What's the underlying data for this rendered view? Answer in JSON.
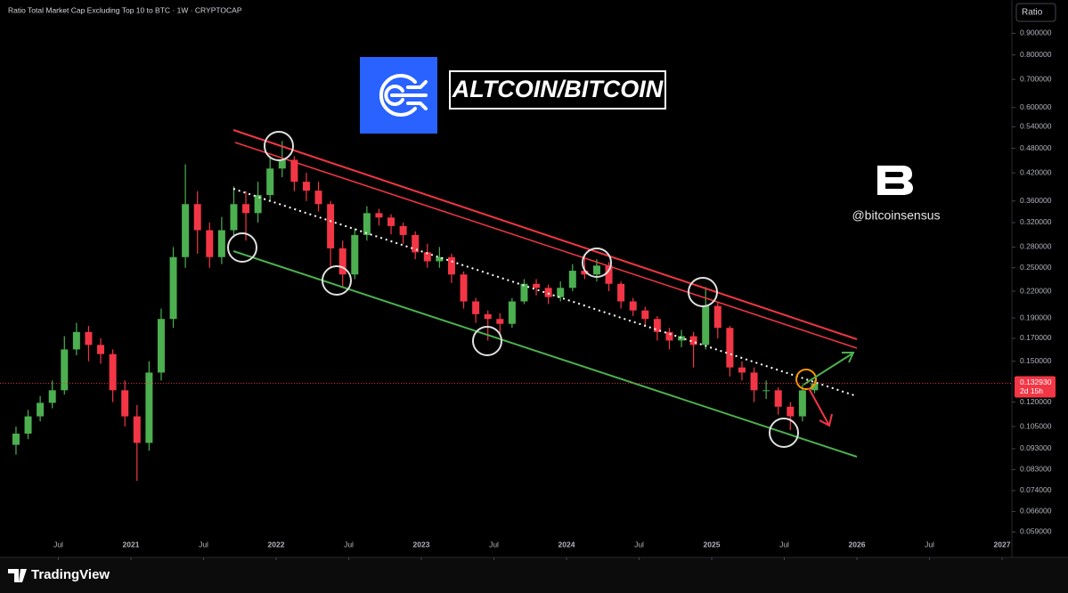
{
  "chart_data": {
    "type": "candlestick",
    "title": "Ratio Total Market Cap Excluding Top 10 to BTC · 1W · CRYPTOCAP",
    "scale_button": "Ratio",
    "headline": "ALTCOIN/BITCOIN",
    "handle": "@bitcoinsensus",
    "brand": "TradingView",
    "log_scale": true,
    "grid": false,
    "up_color": "#4caf50",
    "down_color": "#f23645",
    "x": [
      "2020-03",
      "2020-04",
      "2020-05",
      "2020-06",
      "2020-07",
      "2020-08",
      "2020-09",
      "2020-10",
      "2020-11",
      "2020-12",
      "2021-01",
      "2021-02",
      "2021-03",
      "2021-04",
      "2021-05",
      "2021-06",
      "2021-07",
      "2021-08",
      "2021-09",
      "2021-10",
      "2021-11",
      "2021-12",
      "2022-01",
      "2022-02",
      "2022-03",
      "2022-04",
      "2022-05",
      "2022-06",
      "2022-07",
      "2022-08",
      "2022-09",
      "2022-10",
      "2022-11",
      "2022-12",
      "2023-01",
      "2023-02",
      "2023-03",
      "2023-04",
      "2023-05",
      "2023-06",
      "2023-07",
      "2023-08",
      "2023-09",
      "2023-10",
      "2023-11",
      "2023-12",
      "2024-01",
      "2024-02",
      "2024-03",
      "2024-04",
      "2024-05",
      "2024-06",
      "2024-07",
      "2024-08",
      "2024-09",
      "2024-10",
      "2024-11",
      "2024-12",
      "2025-01",
      "2025-02",
      "2025-03",
      "2025-04",
      "2025-05",
      "2025-06",
      "2025-07",
      "2025-08",
      "2025-09"
    ],
    "open": [
      0.095,
      0.101,
      0.111,
      0.1195,
      0.128,
      0.16,
      0.176,
      0.164,
      0.156,
      0.128,
      0.111,
      0.096,
      0.141,
      0.189,
      0.265,
      0.354,
      0.307,
      0.265,
      0.307,
      0.354,
      0.337,
      0.372,
      0.43,
      0.451,
      0.4,
      0.381,
      0.354,
      0.278,
      0.241,
      0.299,
      0.337,
      0.329,
      0.314,
      0.299,
      0.272,
      0.259,
      0.265,
      0.241,
      0.208,
      0.194,
      0.189,
      0.184,
      0.208,
      0.229,
      0.224,
      0.213,
      0.224,
      0.246,
      0.241,
      0.253,
      0.229,
      0.208,
      0.198,
      0.189,
      0.176,
      0.168,
      0.172,
      0.164,
      0.203,
      0.18,
      0.145,
      0.141,
      0.128,
      0.128,
      0.117,
      0.111,
      0.128
    ],
    "high": [
      0.105,
      0.115,
      0.124,
      0.135,
      0.172,
      0.185,
      0.182,
      0.17,
      0.16,
      0.135,
      0.118,
      0.15,
      0.2,
      0.28,
      0.44,
      0.38,
      0.32,
      0.33,
      0.39,
      0.38,
      0.4,
      0.46,
      0.5,
      0.46,
      0.42,
      0.4,
      0.36,
      0.29,
      0.31,
      0.35,
      0.345,
      0.335,
      0.32,
      0.305,
      0.285,
      0.28,
      0.27,
      0.245,
      0.212,
      0.198,
      0.195,
      0.212,
      0.235,
      0.235,
      0.228,
      0.232,
      0.255,
      0.268,
      0.262,
      0.258,
      0.232,
      0.212,
      0.202,
      0.192,
      0.18,
      0.178,
      0.176,
      0.225,
      0.208,
      0.182,
      0.15,
      0.145,
      0.135,
      0.13,
      0.12,
      0.132,
      0.135
    ],
    "low": [
      0.09,
      0.098,
      0.108,
      0.116,
      0.125,
      0.155,
      0.15,
      0.148,
      0.12,
      0.105,
      0.078,
      0.092,
      0.135,
      0.18,
      0.25,
      0.27,
      0.25,
      0.255,
      0.295,
      0.29,
      0.32,
      0.36,
      0.41,
      0.38,
      0.36,
      0.34,
      0.25,
      0.225,
      0.235,
      0.29,
      0.315,
      0.3,
      0.285,
      0.262,
      0.25,
      0.25,
      0.23,
      0.2,
      0.185,
      0.168,
      0.175,
      0.18,
      0.205,
      0.215,
      0.205,
      0.208,
      0.22,
      0.235,
      0.232,
      0.22,
      0.2,
      0.192,
      0.182,
      0.168,
      0.16,
      0.162,
      0.145,
      0.16,
      0.17,
      0.138,
      0.135,
      0.12,
      0.122,
      0.112,
      0.103,
      0.108,
      0.126
    ],
    "close": [
      0.101,
      0.111,
      0.1195,
      0.128,
      0.16,
      0.176,
      0.164,
      0.156,
      0.128,
      0.111,
      0.096,
      0.141,
      0.189,
      0.265,
      0.354,
      0.307,
      0.265,
      0.307,
      0.354,
      0.337,
      0.372,
      0.43,
      0.451,
      0.4,
      0.381,
      0.354,
      0.278,
      0.241,
      0.299,
      0.337,
      0.329,
      0.314,
      0.299,
      0.272,
      0.259,
      0.265,
      0.241,
      0.208,
      0.194,
      0.189,
      0.184,
      0.208,
      0.229,
      0.224,
      0.213,
      0.224,
      0.246,
      0.241,
      0.253,
      0.229,
      0.208,
      0.198,
      0.189,
      0.176,
      0.168,
      0.172,
      0.164,
      0.203,
      0.18,
      0.145,
      0.141,
      0.128,
      0.128,
      0.117,
      0.111,
      0.128,
      0.13293
    ],
    "current_price": {
      "value": 0.13293,
      "label": "0.132930"
    },
    "countdown": "2d 15h",
    "ylim": [
      0.058,
      1.08
    ],
    "yticks": [
      {
        "value": 0.9,
        "label": "0.900000"
      },
      {
        "value": 0.8,
        "label": "0.800000"
      },
      {
        "value": 0.7,
        "label": "0.700000"
      },
      {
        "value": 0.6,
        "label": "0.600000"
      },
      {
        "value": 0.54,
        "label": "0.540000"
      },
      {
        "value": 0.48,
        "label": "0.480000"
      },
      {
        "value": 0.42,
        "label": "0.420000"
      },
      {
        "value": 0.36,
        "label": "0.360000"
      },
      {
        "value": 0.32,
        "label": "0.320000"
      },
      {
        "value": 0.28,
        "label": "0.280000"
      },
      {
        "value": 0.25,
        "label": "0.250000"
      },
      {
        "value": 0.22,
        "label": "0.220000"
      },
      {
        "value": 0.19,
        "label": "0.190000"
      },
      {
        "value": 0.17,
        "label": "0.170000"
      },
      {
        "value": 0.15,
        "label": "0.150000"
      },
      {
        "value": 0.12,
        "label": "0.120000"
      },
      {
        "value": 0.105,
        "label": "0.105000"
      },
      {
        "value": 0.093,
        "label": "0.093000"
      },
      {
        "value": 0.083,
        "label": "0.083000"
      },
      {
        "value": 0.074,
        "label": "0.074000"
      },
      {
        "value": 0.066,
        "label": "0.066000"
      },
      {
        "value": 0.059,
        "label": "0.059000"
      }
    ],
    "xticks": [
      {
        "value": "2020-07",
        "label": "Jul"
      },
      {
        "value": "2021-01",
        "label": "2021"
      },
      {
        "value": "2021-07",
        "label": "Jul"
      },
      {
        "value": "2022-01",
        "label": "2022"
      },
      {
        "value": "2022-07",
        "label": "Jul"
      },
      {
        "value": "2023-01",
        "label": "2023"
      },
      {
        "value": "2023-07",
        "label": "Jul"
      },
      {
        "value": "2024-01",
        "label": "2024"
      },
      {
        "value": "2024-07",
        "label": "Jul"
      },
      {
        "value": "2025-01",
        "label": "2025"
      },
      {
        "value": "2025-07",
        "label": "Jul"
      },
      {
        "value": "2026-01",
        "label": "2026"
      },
      {
        "value": "2026-07",
        "label": "Jul"
      },
      {
        "value": "2027-01",
        "label": "2027"
      }
    ]
  }
}
